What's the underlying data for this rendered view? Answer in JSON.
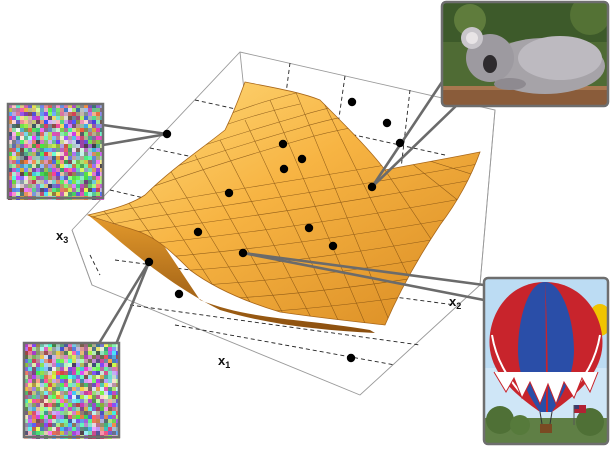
{
  "axes": {
    "x1": {
      "base": "x",
      "sub": "1"
    },
    "x2": {
      "base": "x",
      "sub": "2"
    },
    "x3": {
      "base": "x",
      "sub": "3"
    }
  },
  "colors": {
    "surface_light": "#ffd26a",
    "surface_mid": "#f2a532",
    "surface_dark": "#9a5a10",
    "mesh": "#7a4a10",
    "point": "#000000",
    "leader": "#6b6b6b",
    "frame": "#6e6e6e"
  },
  "thumbnails": [
    {
      "name": "noise-image-top-left",
      "depicts": "random-noise"
    },
    {
      "name": "noise-image-bottom-left",
      "depicts": "random-noise"
    },
    {
      "name": "koala-photo",
      "depicts": "koala"
    },
    {
      "name": "hot-air-balloon-photo",
      "depicts": "hot-air-balloon"
    }
  ]
}
